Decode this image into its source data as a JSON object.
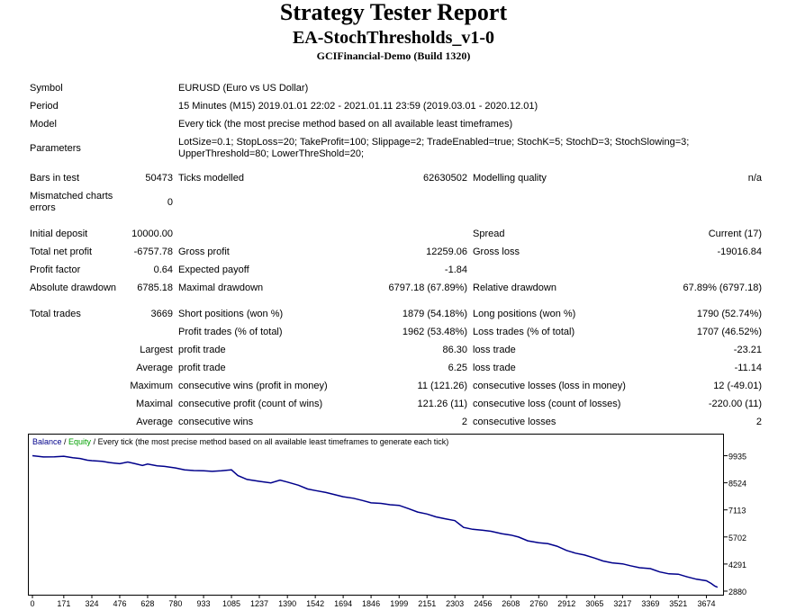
{
  "report": {
    "title": "Strategy Tester Report",
    "ea_name": "EA-StochThresholds_v1-0",
    "server": "GCIFinancial-Demo (Build 1320)"
  },
  "settings": {
    "symbol_label": "Symbol",
    "symbol": "EURUSD (Euro vs US Dollar)",
    "period_label": "Period",
    "period": "15 Minutes (M15) 2019.01.01 22:02 - 2021.01.11 23:59 (2019.03.01 - 2020.12.01)",
    "model_label": "Model",
    "model": "Every tick (the most precise method based on all available least timeframes)",
    "parameters_label": "Parameters",
    "parameters": "LotSize=0.1; StopLoss=20; TakeProfit=100; Slippage=2; TradeEnabled=true; StochK=5; StochD=3; StochSlowing=3; UpperThreshold=80; LowerThreShold=20;",
    "bars_label": "Bars in test",
    "bars": "50473",
    "ticks_label": "Ticks modelled",
    "ticks": "62630502",
    "quality_label": "Modelling quality",
    "quality": "n/a",
    "mismatched_label": "Mismatched charts errors",
    "mismatched": "0"
  },
  "results": {
    "initial_deposit_label": "Initial deposit",
    "initial_deposit": "10000.00",
    "spread_label": "Spread",
    "spread": "Current (17)",
    "net_profit_label": "Total net profit",
    "net_profit": "-6757.78",
    "gross_profit_label": "Gross profit",
    "gross_profit": "12259.06",
    "gross_loss_label": "Gross loss",
    "gross_loss": "-19016.84",
    "profit_factor_label": "Profit factor",
    "profit_factor": "0.64",
    "expected_payoff_label": "Expected payoff",
    "expected_payoff": "-1.84",
    "abs_drawdown_label": "Absolute drawdown",
    "abs_drawdown": "6785.18",
    "max_drawdown_label": "Maximal drawdown",
    "max_drawdown": "6797.18 (67.89%)",
    "rel_drawdown_label": "Relative drawdown",
    "rel_drawdown": "67.89% (6797.18)",
    "total_trades_label": "Total trades",
    "total_trades": "3669",
    "short_label": "Short positions (won %)",
    "short": "1879 (54.18%)",
    "long_label": "Long positions (won %)",
    "long": "1790 (52.74%)",
    "profit_trades_label": "Profit trades (% of total)",
    "profit_trades": "1962 (53.48%)",
    "loss_trades_label": "Loss trades (% of total)",
    "loss_trades": "1707 (46.52%)",
    "largest_label": "Largest",
    "largest_profit_label": "profit trade",
    "largest_profit": "86.30",
    "largest_loss_label": "loss trade",
    "largest_loss": "-23.21",
    "average_label": "Average",
    "avg_profit_label": "profit trade",
    "avg_profit": "6.25",
    "avg_loss_label": "loss trade",
    "avg_loss": "-11.14",
    "maximum_label": "Maximum",
    "max_cons_wins_label": "consecutive wins (profit in money)",
    "max_cons_wins": "11 (121.26)",
    "max_cons_losses_label": "consecutive losses (loss in money)",
    "max_cons_losses": "12 (-49.01)",
    "maximal_label": "Maximal",
    "maximal_cons_profit_label": "consecutive profit (count of wins)",
    "maximal_cons_profit": "121.26 (11)",
    "maximal_cons_loss_label": "consecutive loss (count of losses)",
    "maximal_cons_loss": "-220.00 (11)",
    "avg2_label": "Average",
    "avg_cons_wins_label": "consecutive wins",
    "avg_cons_wins": "2",
    "avg_cons_losses_label": "consecutive losses",
    "avg_cons_losses": "2"
  },
  "chart_legend": {
    "balance": "Balance",
    "sep": " / ",
    "equity": "Equity",
    "rest": " / Every tick (the most precise method based on all available least timeframes to generate each tick)"
  },
  "colors": {
    "balance": "#00008B",
    "equity": "#00A000",
    "frame": "#000000"
  },
  "chart_data": {
    "type": "line",
    "title": "",
    "xlabel": "",
    "ylabel": "",
    "x_ticks": [
      0,
      171,
      324,
      476,
      628,
      780,
      933,
      1085,
      1237,
      1390,
      1542,
      1694,
      1846,
      1999,
      2151,
      2303,
      2456,
      2608,
      2760,
      2912,
      3065,
      3217,
      3369,
      3521,
      3674
    ],
    "y_ticks": [
      2880,
      4291,
      5702,
      7113,
      8524,
      9935
    ],
    "xlim": [
      0,
      3760
    ],
    "ylim": [
      2880,
      10100
    ],
    "grid": false,
    "series": [
      {
        "name": "Balance",
        "x": [
          0,
          60,
          120,
          171,
          220,
          260,
          300,
          324,
          380,
          420,
          476,
          520,
          560,
          600,
          628,
          680,
          720,
          780,
          830,
          880,
          933,
          980,
          1030,
          1085,
          1120,
          1170,
          1237,
          1300,
          1350,
          1390,
          1450,
          1500,
          1542,
          1600,
          1650,
          1694,
          1750,
          1800,
          1846,
          1900,
          1950,
          1999,
          2050,
          2100,
          2151,
          2200,
          2250,
          2303,
          2350,
          2400,
          2456,
          2500,
          2560,
          2608,
          2650,
          2700,
          2760,
          2810,
          2860,
          2912,
          2960,
          3010,
          3065,
          3110,
          3160,
          3217,
          3260,
          3310,
          3369,
          3420,
          3470,
          3521,
          3570,
          3620,
          3674,
          3700,
          3720,
          3735
        ],
        "values": [
          9935,
          9870,
          9880,
          9910,
          9830,
          9790,
          9700,
          9680,
          9640,
          9580,
          9520,
          9610,
          9520,
          9430,
          9500,
          9410,
          9380,
          9300,
          9200,
          9160,
          9150,
          9120,
          9150,
          9200,
          8900,
          8700,
          8600,
          8520,
          8660,
          8560,
          8400,
          8200,
          8120,
          8020,
          7900,
          7800,
          7720,
          7600,
          7480,
          7450,
          7380,
          7350,
          7180,
          7000,
          6900,
          6750,
          6650,
          6550,
          6200,
          6100,
          6050,
          6000,
          5870,
          5800,
          5700,
          5500,
          5400,
          5350,
          5220,
          5000,
          4860,
          4760,
          4600,
          4450,
          4350,
          4300,
          4200,
          4100,
          4050,
          3880,
          3780,
          3760,
          3620,
          3500,
          3420,
          3280,
          3140,
          3080
        ]
      }
    ]
  }
}
